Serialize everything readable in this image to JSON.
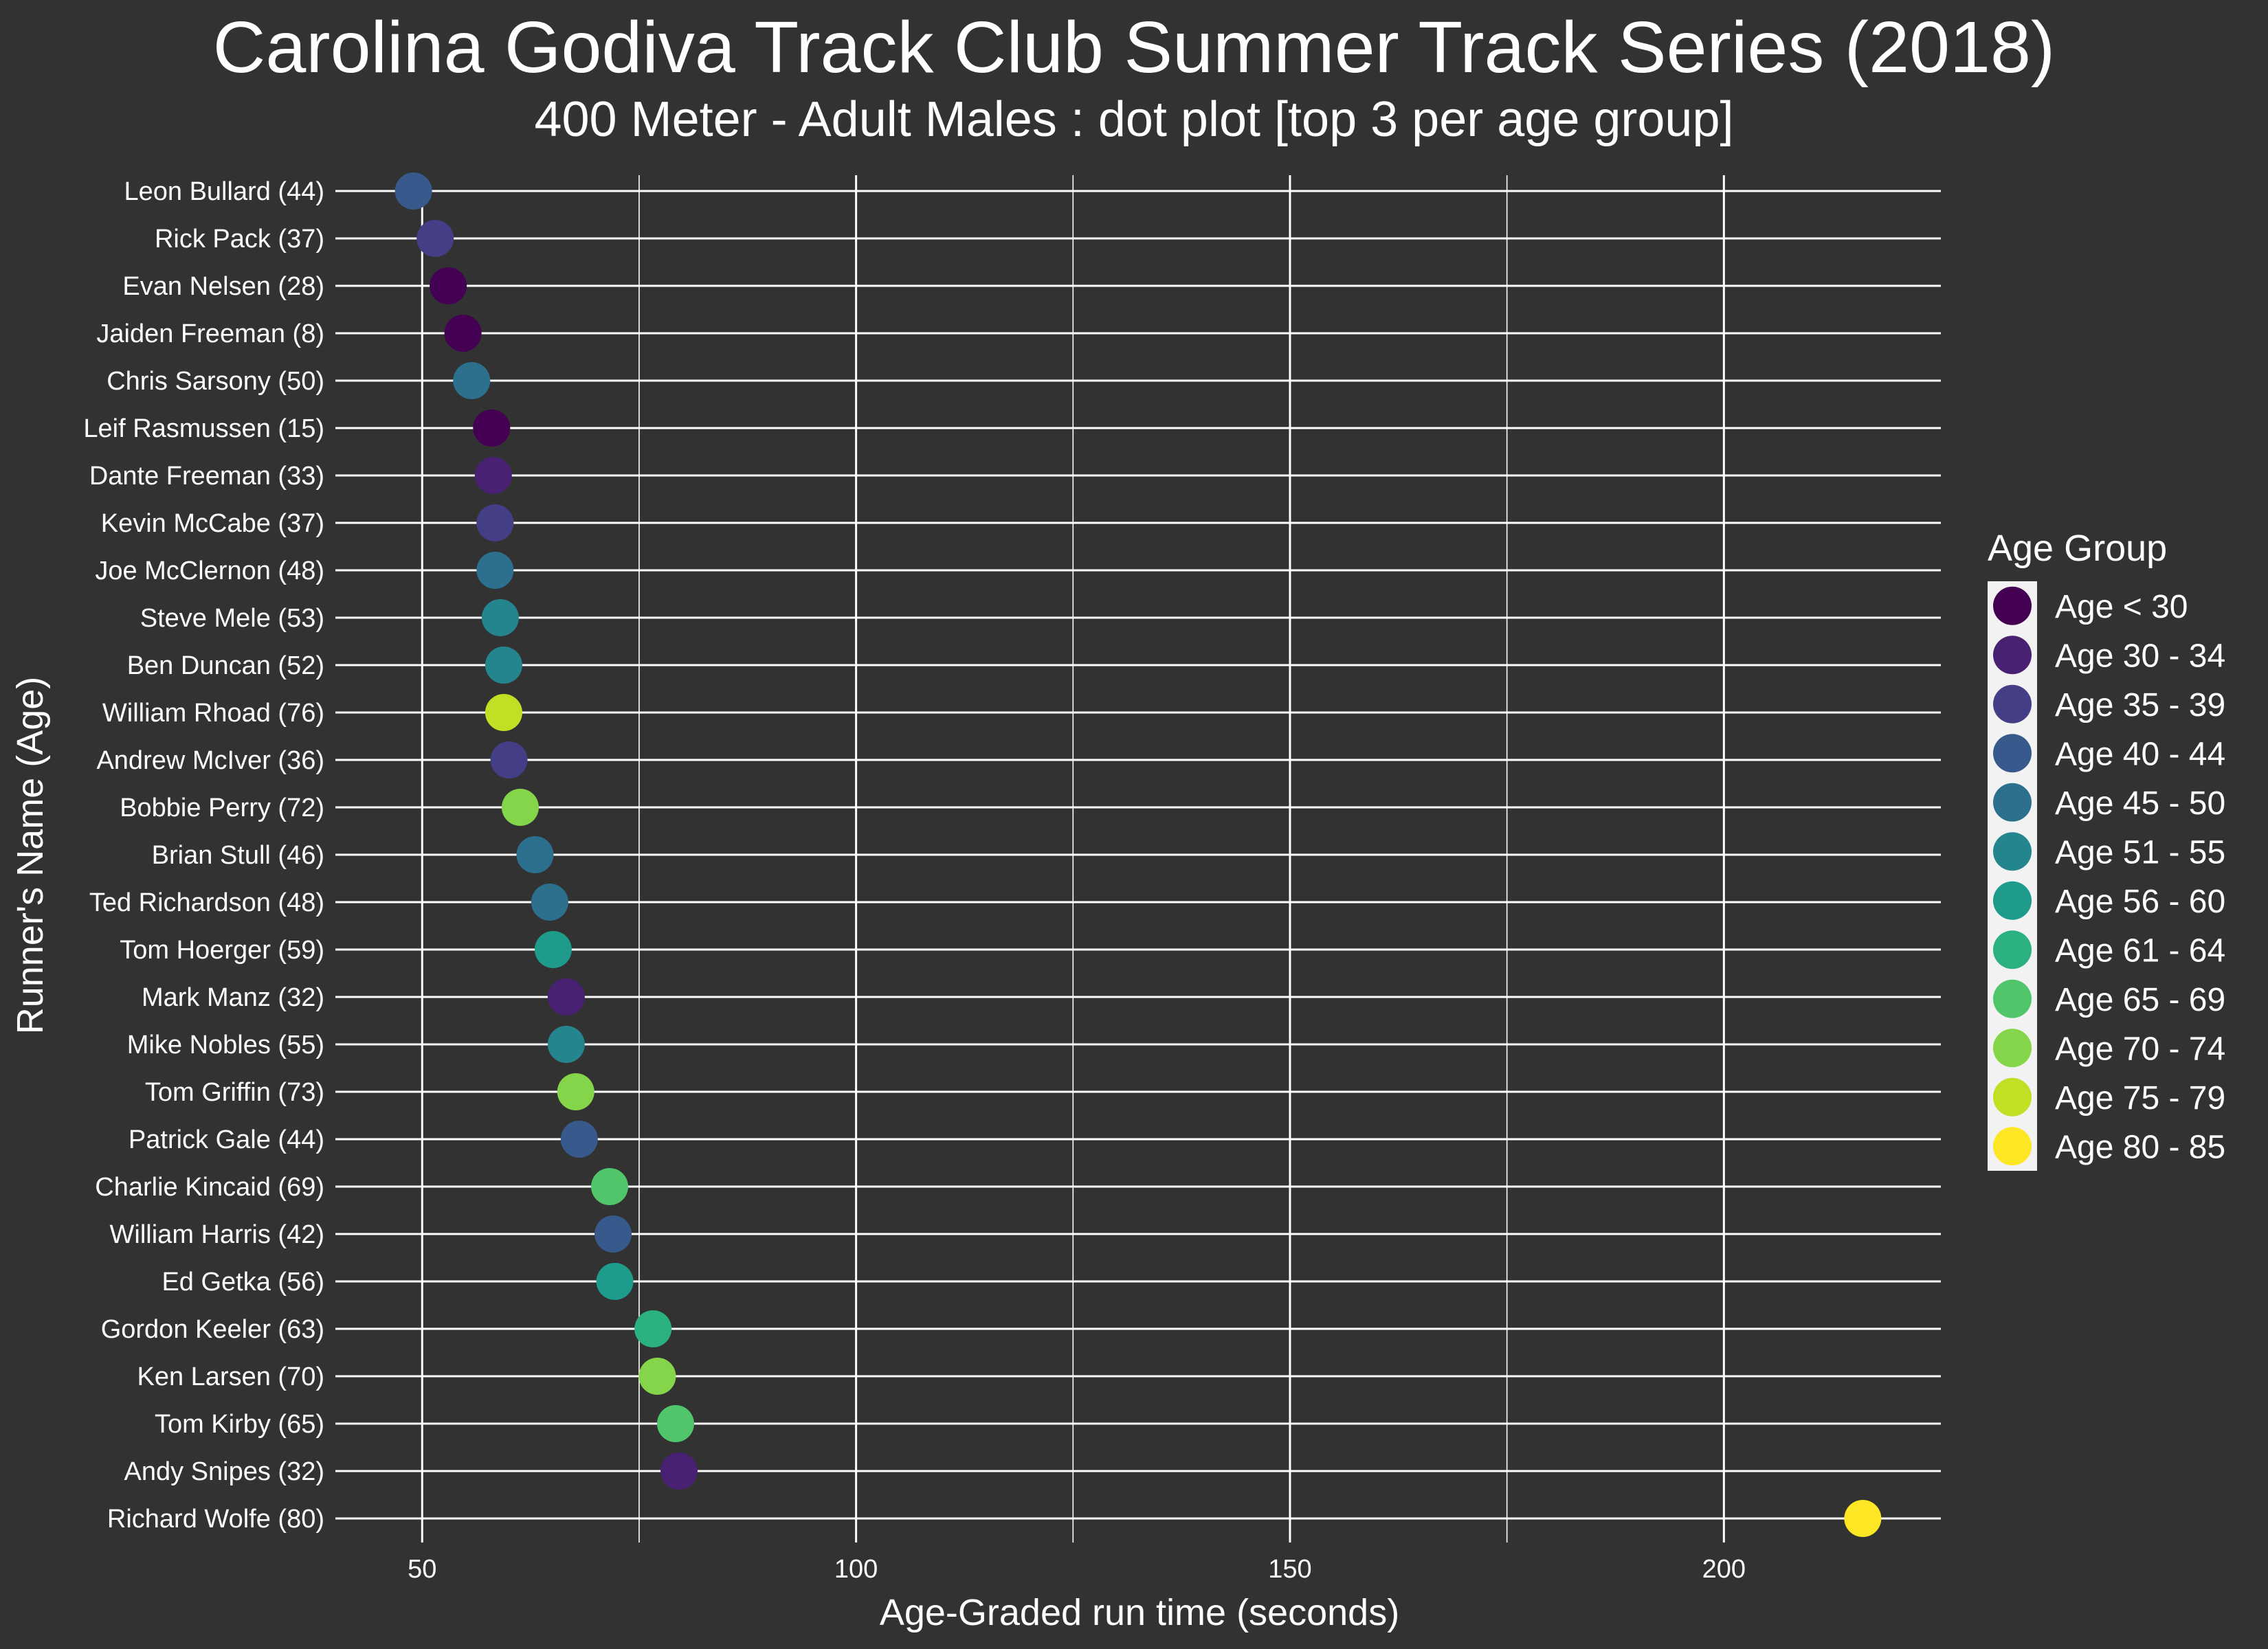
{
  "chart_data": {
    "type": "scatter",
    "title": "Carolina Godiva Track Club Summer Track Series (2018)",
    "subtitle": "400 Meter - Adult Males   : dot plot [top 3 per age group]",
    "xlabel": "Age-Graded run time (seconds)",
    "ylabel": "Runner's Name (Age)",
    "xlim": [
      40,
      225
    ],
    "xticks": [
      50,
      100,
      150,
      200
    ],
    "grid": true,
    "legend": {
      "title": "Age Group",
      "placement": "right",
      "entries": [
        {
          "label": "Age < 30",
          "color": "#440154"
        },
        {
          "label": "Age 30 - 34",
          "color": "#482173"
        },
        {
          "label": "Age 35 - 39",
          "color": "#433E85"
        },
        {
          "label": "Age 40 - 44",
          "color": "#38598C"
        },
        {
          "label": "Age 45 - 50",
          "color": "#2D708E"
        },
        {
          "label": "Age 51 - 55",
          "color": "#25858E"
        },
        {
          "label": "Age 56 - 60",
          "color": "#1E9B8A"
        },
        {
          "label": "Age 61 - 64",
          "color": "#2BB07F"
        },
        {
          "label": "Age 65 - 69",
          "color": "#51C56A"
        },
        {
          "label": "Age 70 - 74",
          "color": "#85D54A"
        },
        {
          "label": "Age 75 - 79",
          "color": "#C2DF23"
        },
        {
          "label": "Age 80 - 85",
          "color": "#FDE725"
        }
      ]
    },
    "points": [
      {
        "name": "Leon Bullard (44)",
        "x": 49,
        "group": "Age 40 - 44"
      },
      {
        "name": "Rick Pack (37)",
        "x": 51.5,
        "group": "Age 35 - 39"
      },
      {
        "name": "Evan Nelsen (28)",
        "x": 53,
        "group": "Age < 30"
      },
      {
        "name": "Jaiden Freeman (8)",
        "x": 54.7,
        "group": "Age < 30"
      },
      {
        "name": "Chris Sarsony (50)",
        "x": 55.7,
        "group": "Age 45 - 50"
      },
      {
        "name": "Leif Rasmussen (15)",
        "x": 58,
        "group": "Age < 30"
      },
      {
        "name": "Dante Freeman (33)",
        "x": 58.2,
        "group": "Age 30 - 34"
      },
      {
        "name": "Kevin McCabe (37)",
        "x": 58.4,
        "group": "Age 35 - 39"
      },
      {
        "name": "Joe McClernon (48)",
        "x": 58.4,
        "group": "Age 45 - 50"
      },
      {
        "name": "Steve Mele (53)",
        "x": 59,
        "group": "Age 51 - 55"
      },
      {
        "name": "Ben Duncan (52)",
        "x": 59.4,
        "group": "Age 51 - 55"
      },
      {
        "name": "William Rhoad (76)",
        "x": 59.4,
        "group": "Age 75 - 79"
      },
      {
        "name": "Andrew McIver (36)",
        "x": 60,
        "group": "Age 35 - 39"
      },
      {
        "name": "Bobbie Perry (72)",
        "x": 61.3,
        "group": "Age 70 - 74"
      },
      {
        "name": "Brian Stull (46)",
        "x": 63,
        "group": "Age 45 - 50"
      },
      {
        "name": "Ted Richardson (48)",
        "x": 64.7,
        "group": "Age 45 - 50"
      },
      {
        "name": "Tom Hoerger (59)",
        "x": 65.1,
        "group": "Age 56 - 60"
      },
      {
        "name": "Mark Manz (32)",
        "x": 66.6,
        "group": "Age 30 - 34"
      },
      {
        "name": "Mike Nobles (55)",
        "x": 66.6,
        "group": "Age 51 - 55"
      },
      {
        "name": "Tom Griffin (73)",
        "x": 67.7,
        "group": "Age 70 - 74"
      },
      {
        "name": "Patrick Gale (44)",
        "x": 68.1,
        "group": "Age 40 - 44"
      },
      {
        "name": "Charlie Kincaid (69)",
        "x": 71.6,
        "group": "Age 65 - 69"
      },
      {
        "name": "William Harris (42)",
        "x": 72,
        "group": "Age 40 - 44"
      },
      {
        "name": "Ed Getka (56)",
        "x": 72.2,
        "group": "Age 56 - 60"
      },
      {
        "name": "Gordon Keeler (63)",
        "x": 76.6,
        "group": "Age 61 - 64"
      },
      {
        "name": "Ken Larsen (70)",
        "x": 77.1,
        "group": "Age 70 - 74"
      },
      {
        "name": "Tom Kirby (65)",
        "x": 79.2,
        "group": "Age 65 - 69"
      },
      {
        "name": "Andy Snipes (32)",
        "x": 79.6,
        "group": "Age 30 - 34"
      },
      {
        "name": "Richard Wolfe (80)",
        "x": 216,
        "group": "Age 80 - 85"
      }
    ]
  }
}
